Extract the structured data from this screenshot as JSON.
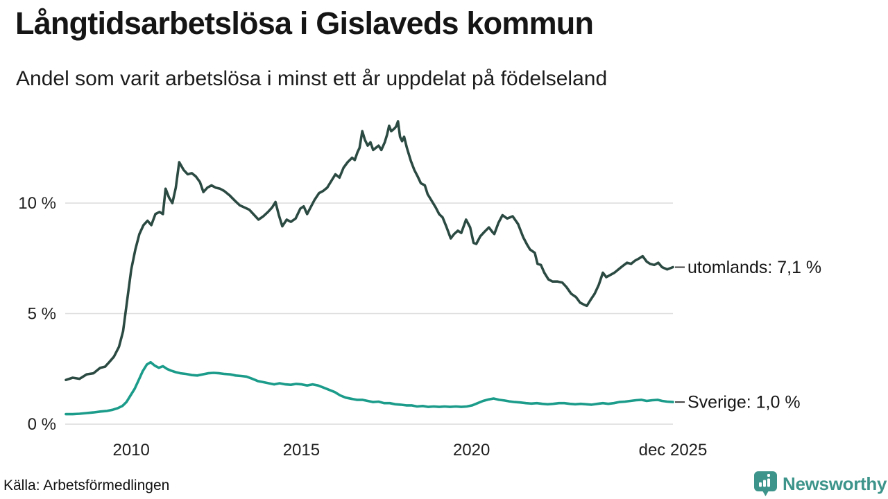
{
  "header": {
    "title": "Långtidsarbetslösa i Gislaveds kommun",
    "subtitle": "Andel som varit arbetslösa i minst ett år uppdelat på födelseland"
  },
  "chart_data": {
    "type": "line",
    "title": "Långtidsarbetslösa i Gislaveds kommun",
    "subtitle": "Andel som varit arbetslösa i minst ett år uppdelat på födelseland",
    "x_domain": [
      2008.08,
      2025.92
    ],
    "ylim": [
      0,
      14.2
    ],
    "grid": "horizontal",
    "grid_color": "#dcdcdc",
    "text_color": "#1f1f1f",
    "legend_position": "line-end-labels",
    "y_ticks": [
      {
        "value": 0,
        "label": "0 %"
      },
      {
        "value": 5,
        "label": "5 %"
      },
      {
        "value": 10,
        "label": "10 %"
      }
    ],
    "x_ticks": [
      {
        "value": 2010,
        "label": "2010"
      },
      {
        "value": 2015,
        "label": "2015"
      },
      {
        "value": 2020,
        "label": "2020"
      },
      {
        "value": 2025.92,
        "label": "dec 2025"
      }
    ],
    "series": [
      {
        "name": "utomlands",
        "end_label": "utomlands: 7,1 %",
        "end_value_text": "7,1 %",
        "color": "#2b4a42",
        "points": [
          [
            2008.08,
            2.0
          ],
          [
            2008.28,
            2.1
          ],
          [
            2008.48,
            2.05
          ],
          [
            2008.69,
            2.25
          ],
          [
            2008.89,
            2.3
          ],
          [
            2009.09,
            2.55
          ],
          [
            2009.23,
            2.6
          ],
          [
            2009.35,
            2.8
          ],
          [
            2009.49,
            3.05
          ],
          [
            2009.64,
            3.5
          ],
          [
            2009.76,
            4.2
          ],
          [
            2009.88,
            5.6
          ],
          [
            2010.0,
            7.0
          ],
          [
            2010.12,
            7.9
          ],
          [
            2010.24,
            8.6
          ],
          [
            2010.36,
            9.0
          ],
          [
            2010.48,
            9.2
          ],
          [
            2010.59,
            9.0
          ],
          [
            2010.71,
            9.5
          ],
          [
            2010.83,
            9.6
          ],
          [
            2010.93,
            9.5
          ],
          [
            2011.01,
            10.65
          ],
          [
            2011.11,
            10.25
          ],
          [
            2011.21,
            10.0
          ],
          [
            2011.31,
            10.7
          ],
          [
            2011.41,
            11.85
          ],
          [
            2011.54,
            11.5
          ],
          [
            2011.66,
            11.3
          ],
          [
            2011.78,
            11.35
          ],
          [
            2011.9,
            11.2
          ],
          [
            2012.02,
            10.95
          ],
          [
            2012.12,
            10.5
          ],
          [
            2012.24,
            10.7
          ],
          [
            2012.36,
            10.8
          ],
          [
            2012.48,
            10.7
          ],
          [
            2012.61,
            10.65
          ],
          [
            2012.73,
            10.55
          ],
          [
            2012.89,
            10.35
          ],
          [
            2013.05,
            10.1
          ],
          [
            2013.19,
            9.9
          ],
          [
            2013.33,
            9.8
          ],
          [
            2013.47,
            9.7
          ],
          [
            2013.62,
            9.45
          ],
          [
            2013.74,
            9.25
          ],
          [
            2013.88,
            9.4
          ],
          [
            2014.02,
            9.6
          ],
          [
            2014.14,
            9.8
          ],
          [
            2014.24,
            10.05
          ],
          [
            2014.34,
            9.45
          ],
          [
            2014.44,
            8.95
          ],
          [
            2014.57,
            9.25
          ],
          [
            2014.69,
            9.15
          ],
          [
            2014.83,
            9.3
          ],
          [
            2014.97,
            9.75
          ],
          [
            2015.07,
            9.85
          ],
          [
            2015.17,
            9.5
          ],
          [
            2015.27,
            9.8
          ],
          [
            2015.39,
            10.15
          ],
          [
            2015.52,
            10.45
          ],
          [
            2015.64,
            10.55
          ],
          [
            2015.76,
            10.7
          ],
          [
            2015.88,
            11.0
          ],
          [
            2016.0,
            11.3
          ],
          [
            2016.12,
            11.15
          ],
          [
            2016.24,
            11.6
          ],
          [
            2016.36,
            11.85
          ],
          [
            2016.49,
            12.05
          ],
          [
            2016.57,
            11.95
          ],
          [
            2016.65,
            12.3
          ],
          [
            2016.71,
            12.5
          ],
          [
            2016.79,
            13.25
          ],
          [
            2016.87,
            12.85
          ],
          [
            2016.95,
            12.6
          ],
          [
            2017.03,
            12.75
          ],
          [
            2017.11,
            12.4
          ],
          [
            2017.19,
            12.5
          ],
          [
            2017.27,
            12.6
          ],
          [
            2017.35,
            12.4
          ],
          [
            2017.45,
            12.75
          ],
          [
            2017.52,
            13.1
          ],
          [
            2017.58,
            13.5
          ],
          [
            2017.64,
            13.25
          ],
          [
            2017.72,
            13.35
          ],
          [
            2017.78,
            13.45
          ],
          [
            2017.84,
            13.7
          ],
          [
            2017.9,
            13.0
          ],
          [
            2017.96,
            12.8
          ],
          [
            2018.02,
            13.0
          ],
          [
            2018.1,
            12.5
          ],
          [
            2018.22,
            11.9
          ],
          [
            2018.32,
            11.5
          ],
          [
            2018.42,
            11.2
          ],
          [
            2018.51,
            10.9
          ],
          [
            2018.63,
            10.8
          ],
          [
            2018.71,
            10.4
          ],
          [
            2018.83,
            10.1
          ],
          [
            2018.95,
            9.8
          ],
          [
            2019.05,
            9.5
          ],
          [
            2019.15,
            9.35
          ],
          [
            2019.27,
            8.9
          ],
          [
            2019.39,
            8.4
          ],
          [
            2019.49,
            8.6
          ],
          [
            2019.6,
            8.75
          ],
          [
            2019.7,
            8.65
          ],
          [
            2019.84,
            9.25
          ],
          [
            2019.96,
            8.9
          ],
          [
            2020.06,
            8.2
          ],
          [
            2020.14,
            8.15
          ],
          [
            2020.26,
            8.5
          ],
          [
            2020.38,
            8.7
          ],
          [
            2020.51,
            8.9
          ],
          [
            2020.61,
            8.7
          ],
          [
            2020.67,
            8.6
          ],
          [
            2020.79,
            9.1
          ],
          [
            2020.91,
            9.45
          ],
          [
            2021.05,
            9.3
          ],
          [
            2021.21,
            9.4
          ],
          [
            2021.37,
            9.05
          ],
          [
            2021.52,
            8.45
          ],
          [
            2021.64,
            8.1
          ],
          [
            2021.72,
            7.9
          ],
          [
            2021.86,
            7.75
          ],
          [
            2021.94,
            7.25
          ],
          [
            2022.04,
            7.2
          ],
          [
            2022.14,
            6.85
          ],
          [
            2022.26,
            6.55
          ],
          [
            2022.38,
            6.45
          ],
          [
            2022.53,
            6.45
          ],
          [
            2022.67,
            6.4
          ],
          [
            2022.79,
            6.2
          ],
          [
            2022.93,
            5.9
          ],
          [
            2023.07,
            5.75
          ],
          [
            2023.19,
            5.5
          ],
          [
            2023.31,
            5.4
          ],
          [
            2023.39,
            5.35
          ],
          [
            2023.49,
            5.6
          ],
          [
            2023.62,
            5.9
          ],
          [
            2023.74,
            6.3
          ],
          [
            2023.86,
            6.85
          ],
          [
            2023.96,
            6.65
          ],
          [
            2024.08,
            6.75
          ],
          [
            2024.2,
            6.85
          ],
          [
            2024.32,
            7.0
          ],
          [
            2024.44,
            7.15
          ],
          [
            2024.57,
            7.3
          ],
          [
            2024.69,
            7.25
          ],
          [
            2024.81,
            7.4
          ],
          [
            2024.93,
            7.5
          ],
          [
            2025.03,
            7.6
          ],
          [
            2025.15,
            7.35
          ],
          [
            2025.25,
            7.25
          ],
          [
            2025.37,
            7.2
          ],
          [
            2025.49,
            7.3
          ],
          [
            2025.6,
            7.1
          ],
          [
            2025.75,
            7.0
          ],
          [
            2025.92,
            7.1
          ]
        ]
      },
      {
        "name": "Sverige",
        "end_label": "Sverige: 1,0 %",
        "end_value_text": "1,0 %",
        "color": "#1b9b8a",
        "points": [
          [
            2008.08,
            0.45
          ],
          [
            2008.28,
            0.45
          ],
          [
            2008.48,
            0.47
          ],
          [
            2008.69,
            0.5
          ],
          [
            2008.89,
            0.53
          ],
          [
            2009.09,
            0.57
          ],
          [
            2009.29,
            0.6
          ],
          [
            2009.45,
            0.65
          ],
          [
            2009.6,
            0.72
          ],
          [
            2009.74,
            0.82
          ],
          [
            2009.86,
            1.0
          ],
          [
            2009.98,
            1.3
          ],
          [
            2010.1,
            1.6
          ],
          [
            2010.22,
            2.0
          ],
          [
            2010.34,
            2.4
          ],
          [
            2010.46,
            2.7
          ],
          [
            2010.57,
            2.8
          ],
          [
            2010.69,
            2.65
          ],
          [
            2010.81,
            2.55
          ],
          [
            2010.93,
            2.62
          ],
          [
            2011.05,
            2.5
          ],
          [
            2011.17,
            2.42
          ],
          [
            2011.31,
            2.35
          ],
          [
            2011.45,
            2.3
          ],
          [
            2011.62,
            2.27
          ],
          [
            2011.78,
            2.22
          ],
          [
            2011.94,
            2.2
          ],
          [
            2012.1,
            2.25
          ],
          [
            2012.26,
            2.3
          ],
          [
            2012.42,
            2.32
          ],
          [
            2012.59,
            2.3
          ],
          [
            2012.75,
            2.27
          ],
          [
            2012.91,
            2.25
          ],
          [
            2013.07,
            2.2
          ],
          [
            2013.23,
            2.18
          ],
          [
            2013.39,
            2.15
          ],
          [
            2013.56,
            2.05
          ],
          [
            2013.72,
            1.95
          ],
          [
            2013.88,
            1.9
          ],
          [
            2014.04,
            1.85
          ],
          [
            2014.2,
            1.8
          ],
          [
            2014.36,
            1.85
          ],
          [
            2014.53,
            1.8
          ],
          [
            2014.69,
            1.78
          ],
          [
            2014.85,
            1.82
          ],
          [
            2015.01,
            1.8
          ],
          [
            2015.17,
            1.75
          ],
          [
            2015.33,
            1.8
          ],
          [
            2015.49,
            1.75
          ],
          [
            2015.66,
            1.65
          ],
          [
            2015.82,
            1.55
          ],
          [
            2015.98,
            1.45
          ],
          [
            2016.14,
            1.3
          ],
          [
            2016.3,
            1.2
          ],
          [
            2016.46,
            1.15
          ],
          [
            2016.63,
            1.1
          ],
          [
            2016.79,
            1.1
          ],
          [
            2016.95,
            1.05
          ],
          [
            2017.11,
            1.0
          ],
          [
            2017.27,
            1.02
          ],
          [
            2017.43,
            0.95
          ],
          [
            2017.6,
            0.95
          ],
          [
            2017.76,
            0.9
          ],
          [
            2017.92,
            0.88
          ],
          [
            2018.08,
            0.85
          ],
          [
            2018.24,
            0.85
          ],
          [
            2018.4,
            0.8
          ],
          [
            2018.57,
            0.82
          ],
          [
            2018.73,
            0.78
          ],
          [
            2018.89,
            0.8
          ],
          [
            2019.05,
            0.78
          ],
          [
            2019.21,
            0.8
          ],
          [
            2019.37,
            0.78
          ],
          [
            2019.54,
            0.8
          ],
          [
            2019.7,
            0.78
          ],
          [
            2019.86,
            0.8
          ],
          [
            2020.02,
            0.85
          ],
          [
            2020.18,
            0.95
          ],
          [
            2020.34,
            1.05
          ],
          [
            2020.51,
            1.12
          ],
          [
            2020.65,
            1.16
          ],
          [
            2020.81,
            1.1
          ],
          [
            2020.97,
            1.07
          ],
          [
            2021.11,
            1.03
          ],
          [
            2021.27,
            1.0
          ],
          [
            2021.43,
            0.98
          ],
          [
            2021.6,
            0.95
          ],
          [
            2021.76,
            0.93
          ],
          [
            2021.92,
            0.95
          ],
          [
            2022.08,
            0.92
          ],
          [
            2022.24,
            0.9
          ],
          [
            2022.4,
            0.92
          ],
          [
            2022.57,
            0.95
          ],
          [
            2022.73,
            0.95
          ],
          [
            2022.89,
            0.92
          ],
          [
            2023.05,
            0.9
          ],
          [
            2023.21,
            0.92
          ],
          [
            2023.37,
            0.9
          ],
          [
            2023.53,
            0.88
          ],
          [
            2023.7,
            0.92
          ],
          [
            2023.86,
            0.95
          ],
          [
            2024.02,
            0.92
          ],
          [
            2024.18,
            0.95
          ],
          [
            2024.34,
            1.0
          ],
          [
            2024.51,
            1.02
          ],
          [
            2024.67,
            1.05
          ],
          [
            2024.83,
            1.08
          ],
          [
            2024.99,
            1.1
          ],
          [
            2025.15,
            1.05
          ],
          [
            2025.31,
            1.08
          ],
          [
            2025.47,
            1.1
          ],
          [
            2025.6,
            1.05
          ],
          [
            2025.75,
            1.02
          ],
          [
            2025.92,
            1.0
          ]
        ]
      }
    ]
  },
  "footer": {
    "source": "Källa: Arbetsförmedlingen",
    "brand": "Newsworthy",
    "brand_color": "#3c948a"
  }
}
